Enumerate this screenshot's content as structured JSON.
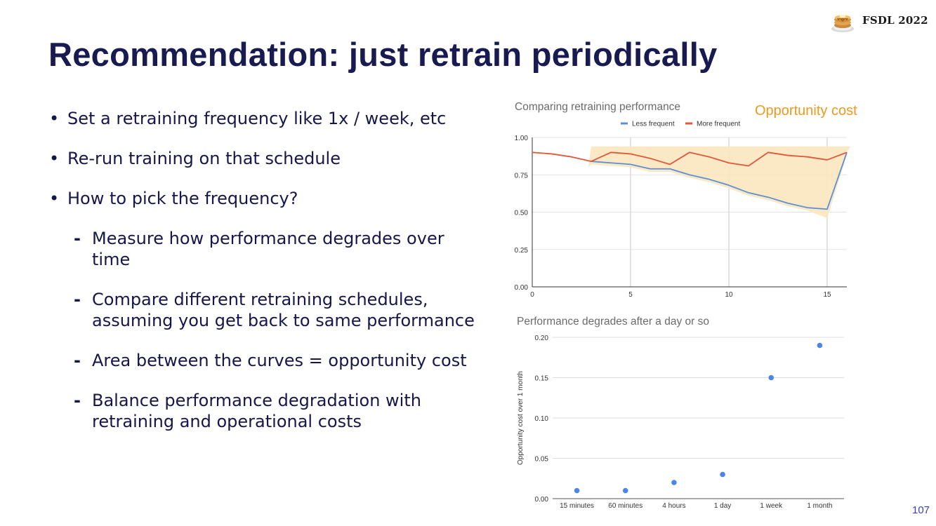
{
  "header": {
    "brand": "FSDL 2022",
    "logo_icon": "pancake-stack-icon"
  },
  "slide": {
    "title": "Recommendation: just retrain periodically",
    "page_number": "107"
  },
  "bullets": [
    "Set a retraining frequency like 1x / week, etc",
    "Re-run training on that schedule",
    "How to pick the frequency?"
  ],
  "sub_bullets": [
    "Measure how performance degrades over time",
    "Compare different retraining schedules, assuming you get back to same performance",
    "Area between the curves = opportunity cost",
    "Balance performance degradation with retraining and operational costs"
  ],
  "annotation": {
    "text": "Opportunity cost",
    "color": "#ec9a1e",
    "fill": "#fbe6bf"
  },
  "chart_data": [
    {
      "type": "line",
      "title": "Comparing retraining performance",
      "xlabel": "",
      "ylabel": "",
      "xlim": [
        0,
        16
      ],
      "ylim": [
        0,
        1
      ],
      "x_ticks": [
        "0",
        "5",
        "10",
        "15"
      ],
      "y_ticks": [
        "0.00",
        "0.25",
        "0.50",
        "0.75",
        "1.00"
      ],
      "grid": true,
      "legend": "top-center",
      "series": [
        {
          "name": "Less frequent",
          "color": "#5b8fd6",
          "x": [
            3,
            4,
            5,
            6,
            7,
            8,
            9,
            10,
            11,
            12,
            13,
            14,
            15,
            16
          ],
          "values": [
            0.84,
            0.83,
            0.82,
            0.79,
            0.79,
            0.75,
            0.72,
            0.68,
            0.63,
            0.6,
            0.56,
            0.53,
            0.52,
            0.9
          ]
        },
        {
          "name": "More frequent",
          "color": "#e0573b",
          "x": [
            0,
            1,
            2,
            3,
            4,
            5,
            6,
            7,
            8,
            9,
            10,
            11,
            12,
            13,
            14,
            15,
            16
          ],
          "values": [
            0.9,
            0.89,
            0.87,
            0.84,
            0.9,
            0.89,
            0.86,
            0.82,
            0.9,
            0.87,
            0.83,
            0.81,
            0.9,
            0.88,
            0.87,
            0.85,
            0.9
          ]
        }
      ]
    },
    {
      "type": "scatter",
      "title": "Performance degrades after a day or so",
      "xlabel": "",
      "ylabel": "Opportunity cost over 1 month",
      "ylim": [
        0,
        0.2
      ],
      "y_ticks": [
        "0.00",
        "0.05",
        "0.10",
        "0.15",
        "0.20"
      ],
      "grid": true,
      "categories": [
        "15 minutes",
        "60 minutes",
        "4 hours",
        "1 day",
        "1 week",
        "1 month"
      ],
      "values": [
        0.01,
        0.01,
        0.02,
        0.03,
        0.15,
        0.19
      ],
      "color": "#4a86e8"
    }
  ]
}
